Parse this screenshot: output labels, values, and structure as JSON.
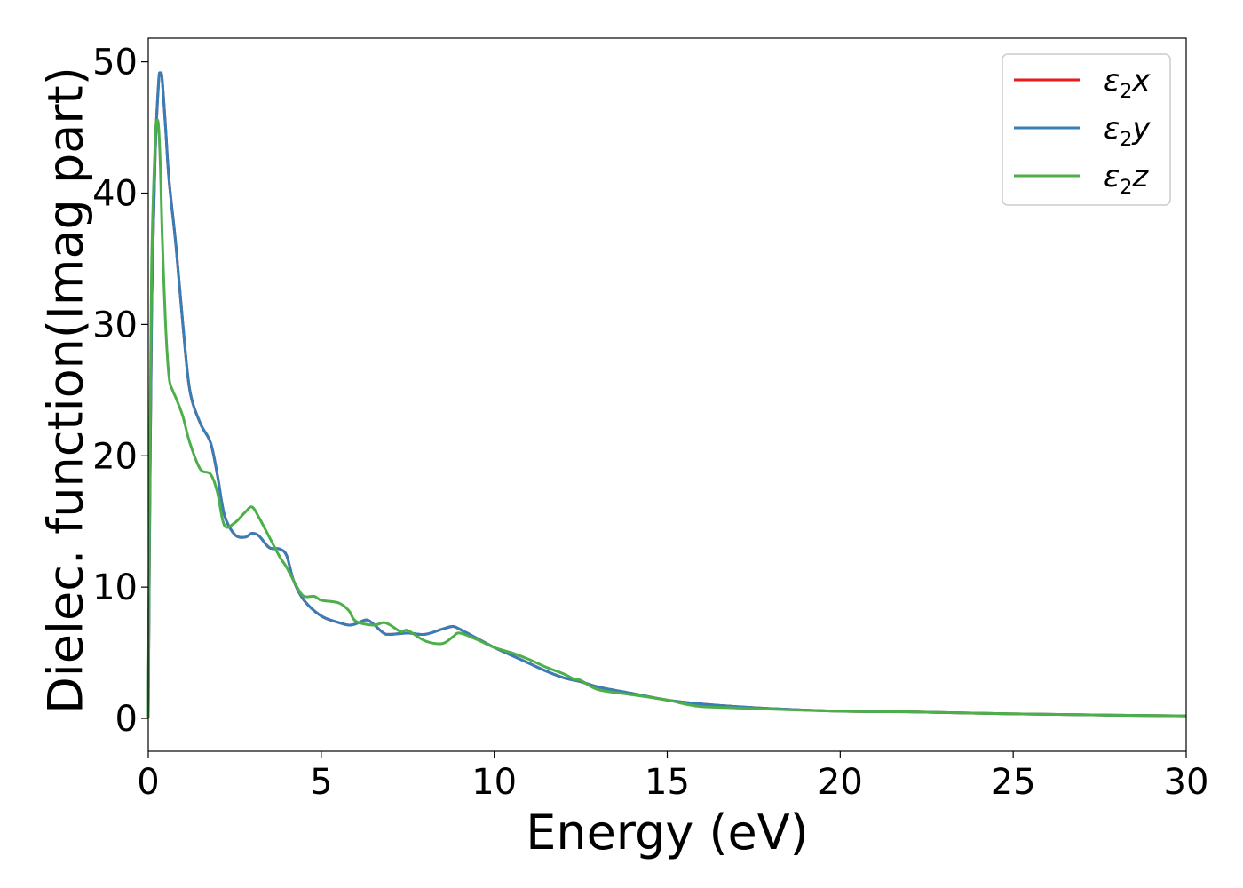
{
  "chart_data": {
    "type": "line",
    "xlabel": "Energy (eV)",
    "ylabel": "Dielec. function(Imag part)",
    "xlim": [
      0,
      30
    ],
    "ylim": [
      -2.5,
      51.8
    ],
    "xticks": [
      0,
      5,
      10,
      15,
      20,
      25,
      30
    ],
    "yticks": [
      0,
      10,
      20,
      30,
      40,
      50
    ],
    "grid": false,
    "legend_position": "top-right",
    "colors": {
      "x": "#e41a1c",
      "y": "#377eb8",
      "z": "#4daf4a"
    },
    "series": [
      {
        "name": "ε2x",
        "legend_symbol": "ε",
        "legend_sub": "2",
        "legend_suffix": "x",
        "x": [
          0,
          0.05,
          0.1,
          0.2,
          0.3,
          0.35,
          0.4,
          0.5,
          0.6,
          0.8,
          1.0,
          1.2,
          1.5,
          1.8,
          2.0,
          2.2,
          2.5,
          2.8,
          3.0,
          3.2,
          3.5,
          3.8,
          4.0,
          4.2,
          4.5,
          5.0,
          5.5,
          5.8,
          6.0,
          6.3,
          6.5,
          6.8,
          7.0,
          7.5,
          8.0,
          8.5,
          8.8,
          9.0,
          9.5,
          10.0,
          10.5,
          11.0,
          11.5,
          12.0,
          12.5,
          13.0,
          14.0,
          15.0,
          16.0,
          17.0,
          18.0,
          20.0,
          22.0,
          25.0,
          28.0,
          30.0
        ],
        "values": [
          0,
          18,
          32,
          43,
          48.5,
          49.1,
          48.7,
          45,
          41,
          36,
          30,
          25,
          22.5,
          21,
          18.5,
          15.5,
          14,
          13.8,
          14.1,
          13.9,
          13,
          12.9,
          12.4,
          10.5,
          9,
          7.8,
          7.3,
          7.1,
          7.2,
          7.5,
          7.2,
          6.5,
          6.4,
          6.5,
          6.4,
          6.8,
          7,
          6.8,
          6.1,
          5.4,
          4.8,
          4.2,
          3.6,
          3.1,
          2.8,
          2.4,
          1.9,
          1.4,
          1.1,
          0.9,
          0.75,
          0.55,
          0.5,
          0.35,
          0.25,
          0.2
        ]
      },
      {
        "name": "ε2y",
        "legend_symbol": "ε",
        "legend_sub": "2",
        "legend_suffix": "y",
        "x": [
          0,
          0.05,
          0.1,
          0.2,
          0.3,
          0.35,
          0.4,
          0.5,
          0.6,
          0.8,
          1.0,
          1.2,
          1.5,
          1.8,
          2.0,
          2.2,
          2.5,
          2.8,
          3.0,
          3.2,
          3.5,
          3.8,
          4.0,
          4.2,
          4.5,
          5.0,
          5.5,
          5.8,
          6.0,
          6.3,
          6.5,
          6.8,
          7.0,
          7.5,
          8.0,
          8.5,
          8.8,
          9.0,
          9.5,
          10.0,
          10.5,
          11.0,
          11.5,
          12.0,
          12.5,
          13.0,
          14.0,
          15.0,
          16.0,
          17.0,
          18.0,
          20.0,
          22.0,
          25.0,
          28.0,
          30.0
        ],
        "values": [
          0,
          18,
          32,
          43,
          48.5,
          49.1,
          48.7,
          45,
          41,
          36,
          30,
          25,
          22.5,
          21,
          18.5,
          15.5,
          14,
          13.8,
          14.1,
          13.9,
          13,
          12.9,
          12.4,
          10.5,
          9,
          7.8,
          7.3,
          7.1,
          7.2,
          7.5,
          7.2,
          6.5,
          6.4,
          6.5,
          6.4,
          6.8,
          7,
          6.8,
          6.1,
          5.4,
          4.8,
          4.2,
          3.6,
          3.1,
          2.8,
          2.4,
          1.9,
          1.4,
          1.1,
          0.9,
          0.75,
          0.55,
          0.5,
          0.35,
          0.25,
          0.2
        ]
      },
      {
        "name": "ε2z",
        "legend_symbol": "ε",
        "legend_sub": "2",
        "legend_suffix": "z",
        "x": [
          0,
          0.05,
          0.1,
          0.2,
          0.25,
          0.3,
          0.35,
          0.4,
          0.5,
          0.6,
          0.7,
          0.8,
          1.0,
          1.2,
          1.5,
          1.8,
          2.0,
          2.2,
          2.5,
          2.8,
          3.0,
          3.2,
          3.5,
          3.8,
          4.0,
          4.3,
          4.5,
          4.8,
          5.0,
          5.5,
          5.8,
          6.0,
          6.5,
          6.8,
          7.0,
          7.3,
          7.5,
          8.0,
          8.5,
          8.8,
          9.0,
          9.5,
          10.0,
          10.5,
          11.0,
          11.5,
          12.0,
          12.3,
          12.5,
          13.0,
          14.0,
          15.0,
          15.5,
          16.0,
          17.0,
          18.0,
          20.0,
          22.0,
          25.0,
          28.0,
          30.0
        ],
        "values": [
          0,
          22,
          35,
          44,
          45.5,
          45,
          42,
          37,
          30,
          26,
          25,
          24.4,
          23,
          21,
          19,
          18.6,
          17.2,
          14.7,
          14.9,
          15.7,
          16.1,
          15.3,
          13.8,
          12.3,
          11.5,
          10,
          9.3,
          9.3,
          9,
          8.8,
          8.2,
          7.4,
          7.1,
          7.3,
          7.1,
          6.6,
          6.7,
          5.9,
          5.7,
          6.2,
          6.5,
          6.0,
          5.4,
          5.0,
          4.5,
          3.9,
          3.4,
          3.0,
          2.9,
          2.2,
          1.8,
          1.4,
          1.1,
          0.9,
          0.8,
          0.7,
          0.55,
          0.5,
          0.35,
          0.25,
          0.2
        ]
      }
    ]
  }
}
